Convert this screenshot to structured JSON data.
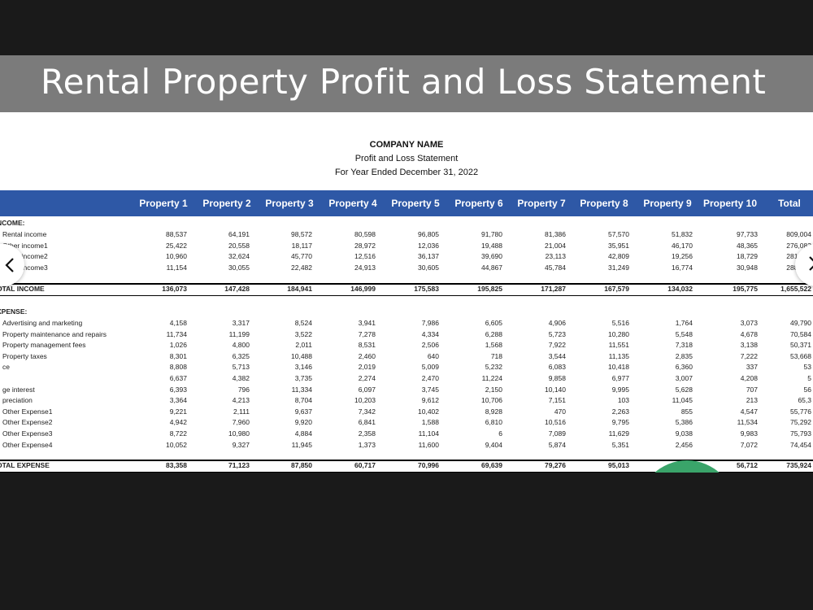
{
  "banner": {
    "title": "Rental Property Profit and Loss Statement"
  },
  "statement": {
    "company": "COMPANY NAME",
    "subtitle": "Profit and Loss Statement",
    "period": "For Year Ended December 31, 2022"
  },
  "columns": [
    "Property 1",
    "Property 2",
    "Property 3",
    "Property 4",
    "Property 5",
    "Property 6",
    "Property 7",
    "Property 8",
    "Property 9",
    "Property 10",
    "Total"
  ],
  "income": {
    "heading": "NCOME:",
    "rows": [
      {
        "label": "Rental income",
        "values": [
          "88,537",
          "64,191",
          "98,572",
          "80,598",
          "96,805",
          "91,780",
          "81,386",
          "57,570",
          "51,832",
          "97,733",
          "809,004"
        ]
      },
      {
        "label": "Other income1",
        "values": [
          "25,422",
          "20,558",
          "18,117",
          "28,972",
          "12,036",
          "19,488",
          "21,004",
          "35,951",
          "46,170",
          "48,365",
          "276,083"
        ]
      },
      {
        "label": "Other income2",
        "values": [
          "10,960",
          "32,624",
          "45,770",
          "12,516",
          "36,137",
          "39,690",
          "23,113",
          "42,809",
          "19,256",
          "18,729",
          "281,604"
        ]
      },
      {
        "label": "Other income3",
        "values": [
          "11,154",
          "30,055",
          "22,482",
          "24,913",
          "30,605",
          "44,867",
          "45,784",
          "31,249",
          "16,774",
          "30,948",
          "288,831"
        ]
      }
    ],
    "total": {
      "label": "OTAL INCOME",
      "values": [
        "136,073",
        "147,428",
        "184,941",
        "146,999",
        "175,583",
        "195,825",
        "171,287",
        "167,579",
        "134,032",
        "195,775",
        "1,655,522"
      ]
    }
  },
  "expense": {
    "heading": "XPENSE:",
    "rows": [
      {
        "label": "Advertising and marketing",
        "values": [
          "4,158",
          "3,317",
          "8,524",
          "3,941",
          "7,986",
          "6,605",
          "4,906",
          "5,516",
          "1,764",
          "3,073",
          "49,790"
        ]
      },
      {
        "label": "Property maintenance and repairs",
        "values": [
          "11,734",
          "11,199",
          "3,522",
          "7,278",
          "4,334",
          "6,288",
          "5,723",
          "10,280",
          "5,548",
          "4,678",
          "70,584"
        ]
      },
      {
        "label": "Property management fees",
        "values": [
          "1,026",
          "4,800",
          "2,011",
          "8,531",
          "2,506",
          "1,568",
          "7,922",
          "11,551",
          "7,318",
          "3,138",
          "50,371"
        ]
      },
      {
        "label": "Property taxes",
        "values": [
          "8,301",
          "6,325",
          "10,488",
          "2,460",
          "640",
          "718",
          "3,544",
          "11,135",
          "2,835",
          "7,222",
          "53,668"
        ]
      },
      {
        "label": "ce",
        "values": [
          "8,808",
          "5,713",
          "3,146",
          "2,019",
          "5,009",
          "5,232",
          "6,083",
          "10,418",
          "6,360",
          "337",
          "53"
        ]
      },
      {
        "label": "",
        "values": [
          "6,637",
          "4,382",
          "3,735",
          "2,274",
          "2,470",
          "11,224",
          "9,858",
          "6,977",
          "3,007",
          "4,208",
          "5"
        ]
      },
      {
        "label": "ge interest",
        "values": [
          "6,393",
          "796",
          "11,334",
          "6,097",
          "3,745",
          "2,150",
          "10,140",
          "9,995",
          "5,628",
          "707",
          "56"
        ]
      },
      {
        "label": "preciation",
        "values": [
          "3,364",
          "4,213",
          "8,704",
          "10,203",
          "9,612",
          "10,706",
          "7,151",
          "103",
          "11,045",
          "213",
          "65,3"
        ]
      },
      {
        "label": "Other Expense1",
        "values": [
          "9,221",
          "2,111",
          "9,637",
          "7,342",
          "10,402",
          "8,928",
          "470",
          "2,263",
          "855",
          "4,547",
          "55,776"
        ]
      },
      {
        "label": "Other Expense2",
        "values": [
          "4,942",
          "7,960",
          "9,920",
          "6,841",
          "1,588",
          "6,810",
          "10,516",
          "9,795",
          "5,386",
          "11,534",
          "75,292"
        ]
      },
      {
        "label": "Other Expense3",
        "values": [
          "8,722",
          "10,980",
          "4,884",
          "2,358",
          "11,104",
          "6",
          "7,089",
          "11,629",
          "9,038",
          "9,983",
          "75,793"
        ]
      },
      {
        "label": "Other Expense4",
        "values": [
          "10,052",
          "9,327",
          "11,945",
          "1,373",
          "11,600",
          "9,404",
          "5,874",
          "5,351",
          "2,456",
          "7,072",
          "74,454"
        ]
      }
    ],
    "total": {
      "label": "OTAL EXPENSE",
      "values": [
        "83,358",
        "71,123",
        "87,850",
        "60,717",
        "70,996",
        "69,639",
        "79,276",
        "95,013",
        "",
        "56,712",
        "735,924"
      ]
    }
  },
  "nav": {
    "prev_icon": "chevron-left-icon",
    "next_icon": "chevron-right-icon"
  },
  "colors": {
    "header_bar": "#2e58a6",
    "banner": "#7b7b7b"
  }
}
